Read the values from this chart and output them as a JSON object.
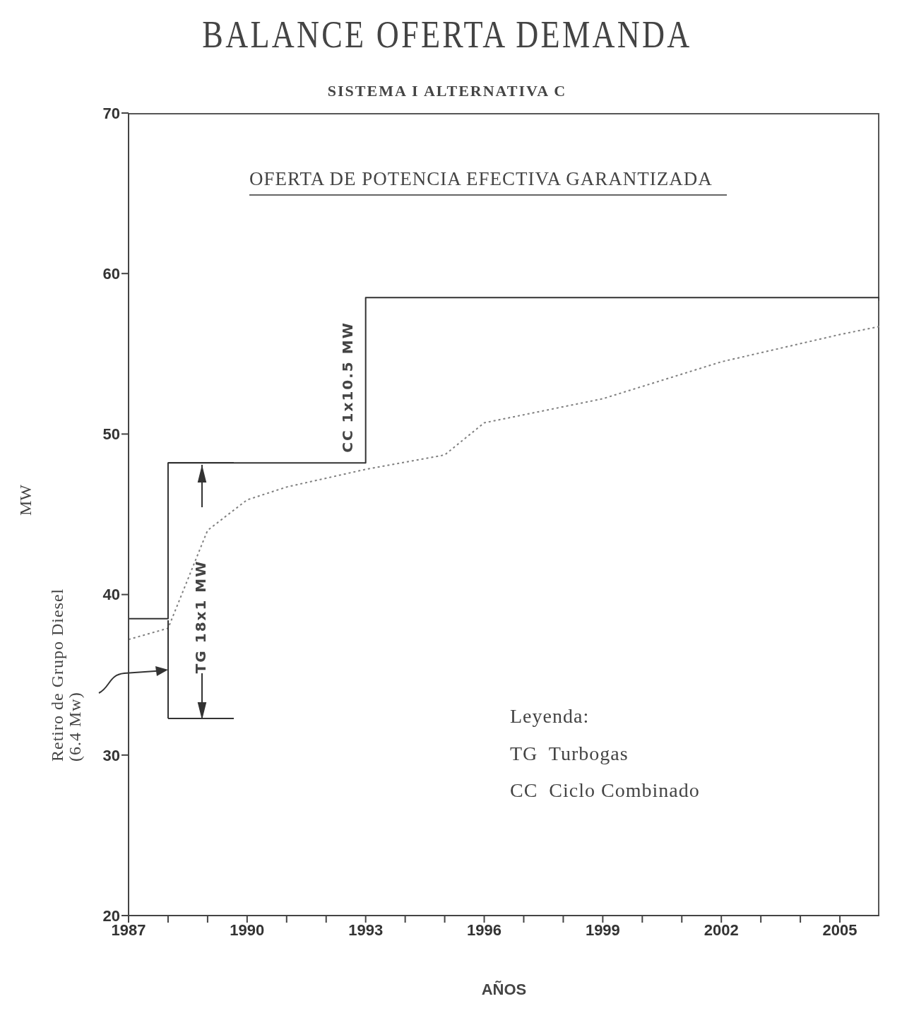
{
  "chart_data": {
    "type": "step",
    "title": "BALANCE OFERTA DEMANDA",
    "subtitle": "SISTEMA I ALTERNATIVA C",
    "xlabel": "AÑOS",
    "ylabel": "MW",
    "xlim": [
      1987,
      2006
    ],
    "ylim": [
      20,
      70
    ],
    "xticks": [
      1987,
      {
        "value": 1988,
        "label": null
      },
      {
        "value": 1989,
        "label": null
      },
      1990,
      {
        "value": 1991,
        "label": null
      },
      {
        "value": 1992,
        "label": null
      },
      1993,
      {
        "value": 1994,
        "label": null
      },
      {
        "value": 1995,
        "label": null
      },
      1996,
      {
        "value": 1997,
        "label": null
      },
      {
        "value": 1998,
        "label": null
      },
      1999,
      {
        "value": 2000,
        "label": null
      },
      {
        "value": 2001,
        "label": null
      },
      2002,
      {
        "value": 2003,
        "label": null
      },
      {
        "value": 2004,
        "label": null
      },
      2005
    ],
    "yticks": [
      20,
      30,
      40,
      50,
      60,
      70
    ],
    "marker": "none",
    "series": [
      {
        "color": "#333333",
        "line_style": "solid",
        "x": [
          1987,
          1988,
          1993,
          2006
        ],
        "values": [
          38.5,
          48.2,
          58.5,
          58.3
        ]
      },
      {
        "type": "line",
        "color": "#808080",
        "line_style": "dotted",
        "x": [
          1987,
          1988,
          1989,
          1990,
          1991,
          1993,
          1995,
          1996,
          1999,
          2002,
          2005,
          2006
        ],
        "values": [
          37.2,
          37.9,
          44.0,
          45.9,
          46.7,
          47.8,
          48.7,
          50.7,
          52.2,
          54.5,
          56.2,
          56.7
        ]
      }
    ],
    "annotations": [
      "OFERTA DE POTENCIA EFECTIVA GARANTIZADA",
      "CC 1x10.5 MW",
      "TG 18x1 MW",
      "Retiro de Grupo Diesel (6.4 Mw)",
      "Leyenda:",
      "TG  Turbogas",
      "CC  Ciclo Combinado"
    ]
  }
}
